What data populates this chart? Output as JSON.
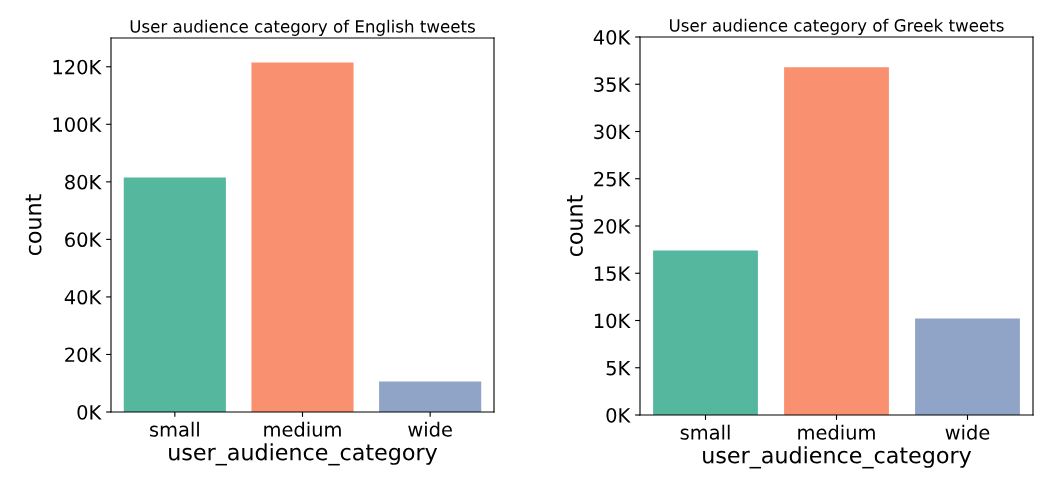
{
  "chart_data": [
    {
      "type": "bar",
      "title": "User audience category of English tweets",
      "xlabel": "user_audience_category",
      "ylabel": "count",
      "categories": [
        "small",
        "medium",
        "wide"
      ],
      "values": [
        81500,
        121500,
        10600
      ],
      "colors": [
        "#56b79f",
        "#f99170",
        "#8fa4c6"
      ],
      "ylim": [
        0,
        130000
      ],
      "yticks": [
        {
          "value": 0,
          "label": "0K"
        },
        {
          "value": 20000,
          "label": "20K"
        },
        {
          "value": 40000,
          "label": "40K"
        },
        {
          "value": 60000,
          "label": "60K"
        },
        {
          "value": 80000,
          "label": "80K"
        },
        {
          "value": 100000,
          "label": "100K"
        },
        {
          "value": 120000,
          "label": "120K"
        }
      ],
      "grid": false
    },
    {
      "type": "bar",
      "title": "User audience category of Greek tweets",
      "xlabel": "user_audience_category",
      "ylabel": "count",
      "categories": [
        "small",
        "medium",
        "wide"
      ],
      "values": [
        17400,
        36800,
        10200
      ],
      "colors": [
        "#56b79f",
        "#f99170",
        "#8fa4c6"
      ],
      "ylim": [
        0,
        40000
      ],
      "yticks": [
        {
          "value": 0,
          "label": "0K"
        },
        {
          "value": 5000,
          "label": "5K"
        },
        {
          "value": 10000,
          "label": "10K"
        },
        {
          "value": 15000,
          "label": "15K"
        },
        {
          "value": 20000,
          "label": "20K"
        },
        {
          "value": 25000,
          "label": "25K"
        },
        {
          "value": 30000,
          "label": "30K"
        },
        {
          "value": 35000,
          "label": "35K"
        },
        {
          "value": 40000,
          "label": "40K"
        }
      ],
      "grid": false
    }
  ]
}
